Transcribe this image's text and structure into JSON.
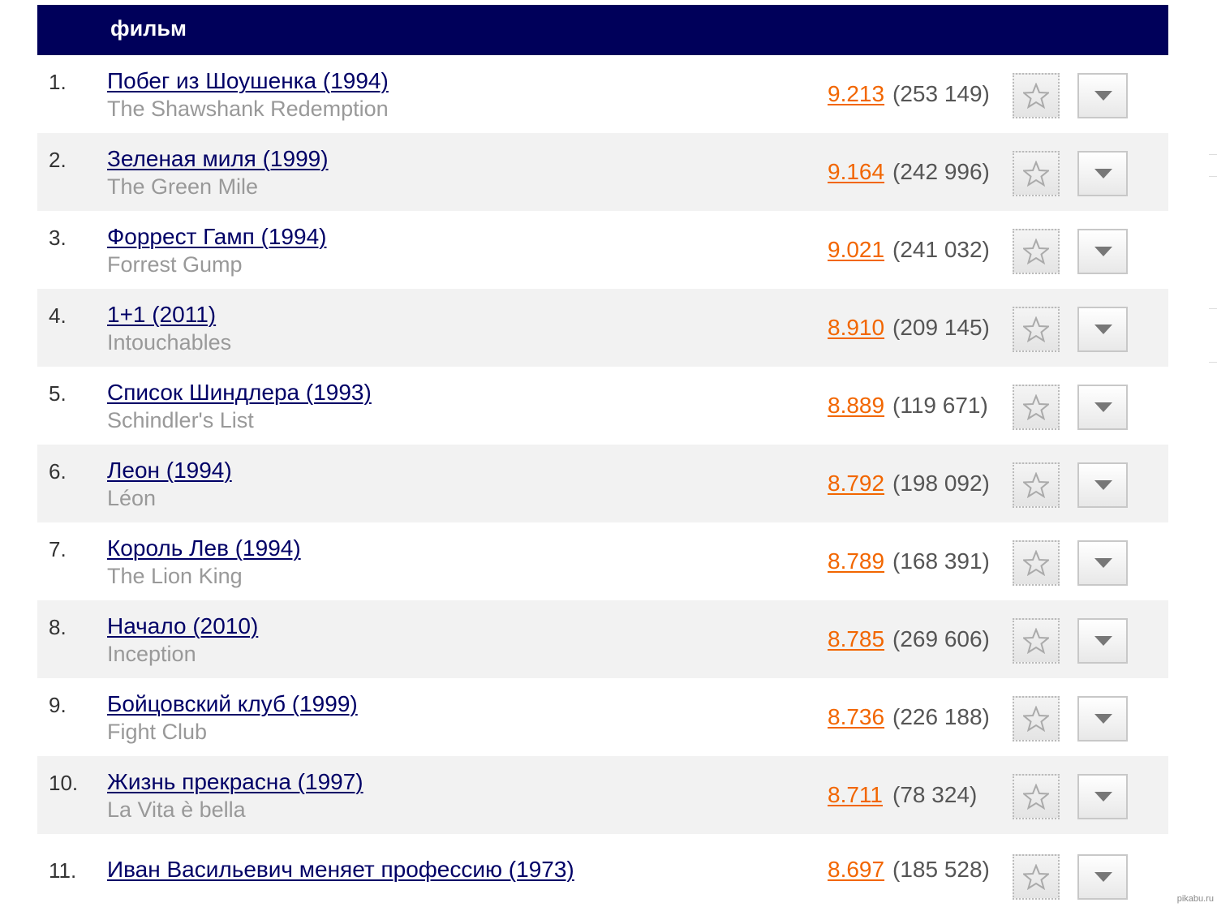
{
  "header": {
    "column_label": "фильм"
  },
  "movies": [
    {
      "rank": "1.",
      "title_ru": "Побег из Шоушенка (1994)",
      "title_orig": "The Shawshank Redemption",
      "rating": "9.213",
      "votes": "(253 149)"
    },
    {
      "rank": "2.",
      "title_ru": "Зеленая миля (1999)",
      "title_orig": "The Green Mile",
      "rating": "9.164",
      "votes": "(242 996)"
    },
    {
      "rank": "3.",
      "title_ru": "Форрест Гамп (1994)",
      "title_orig": "Forrest Gump",
      "rating": "9.021",
      "votes": "(241 032)"
    },
    {
      "rank": "4.",
      "title_ru": "1+1 (2011)",
      "title_orig": "Intouchables",
      "rating": "8.910",
      "votes": "(209 145)"
    },
    {
      "rank": "5.",
      "title_ru": "Список Шиндлера (1993)",
      "title_orig": "Schindler's List",
      "rating": "8.889",
      "votes": "(119 671)"
    },
    {
      "rank": "6.",
      "title_ru": "Леон (1994)",
      "title_orig": "Léon",
      "rating": "8.792",
      "votes": "(198 092)"
    },
    {
      "rank": "7.",
      "title_ru": "Король Лев (1994)",
      "title_orig": "The Lion King",
      "rating": "8.789",
      "votes": "(168 391)"
    },
    {
      "rank": "8.",
      "title_ru": "Начало (2010)",
      "title_orig": "Inception",
      "rating": "8.785",
      "votes": "(269 606)"
    },
    {
      "rank": "9.",
      "title_ru": "Бойцовский клуб (1999)",
      "title_orig": "Fight Club",
      "rating": "8.736",
      "votes": "(226 188)"
    },
    {
      "rank": "10.",
      "title_ru": "Жизнь прекрасна (1997)",
      "title_orig": "La Vita è bella",
      "rating": "8.711",
      "votes": "(78 324)"
    },
    {
      "rank": "11.",
      "title_ru": "Иван Васильевич меняет профессию (1973)",
      "title_orig": "",
      "rating": "8.697",
      "votes": "(185 528)"
    }
  ],
  "icons": {
    "favorite": "star-icon",
    "menu": "chevron-down-icon"
  },
  "colors": {
    "header_bg": "#00005a",
    "link": "#000066",
    "rating": "#f26600",
    "original_title": "#999999",
    "alt_row": "#f2f2f2"
  },
  "watermark": "pikabu.ru"
}
